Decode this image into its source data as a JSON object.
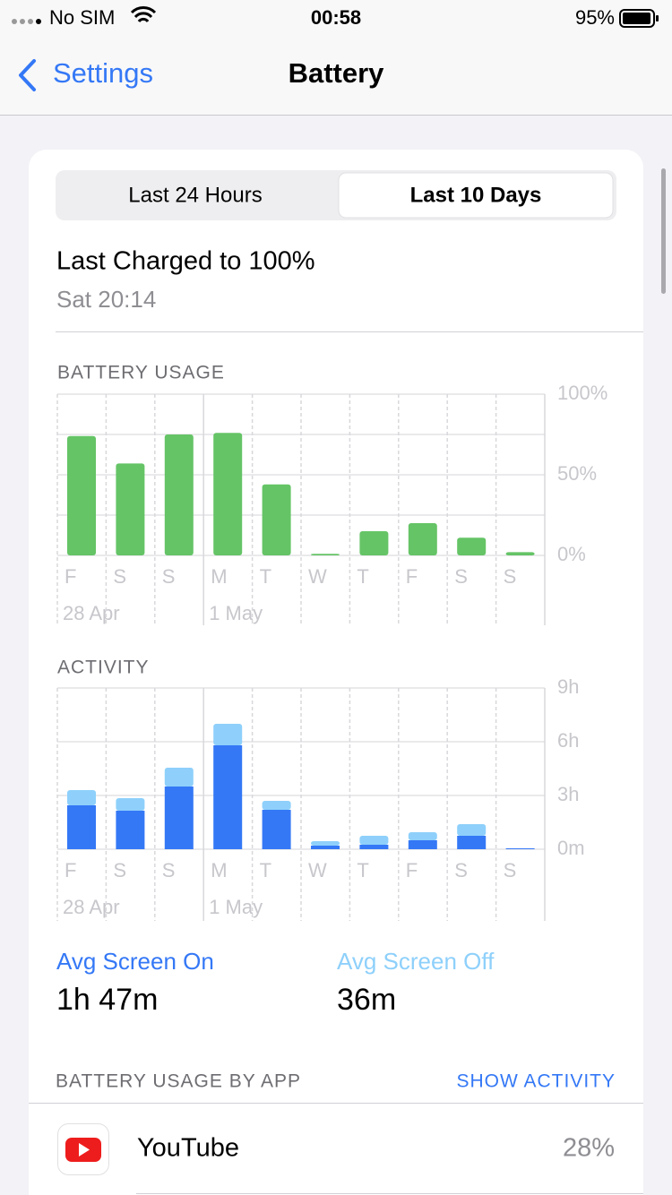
{
  "status_bar": {
    "carrier": "No SIM",
    "time": "00:58",
    "battery": "95%"
  },
  "nav": {
    "back": "Settings",
    "title": "Battery"
  },
  "segmented": {
    "options": [
      "Last 24 Hours",
      "Last 10 Days"
    ],
    "selected": 1
  },
  "last_charged": {
    "title": "Last Charged to 100%",
    "time": "Sat 20:14"
  },
  "chart_data": [
    {
      "type": "bar",
      "title": "BATTERY USAGE",
      "categories": [
        "F",
        "S",
        "S",
        "M",
        "T",
        "W",
        "T",
        "F",
        "S",
        "S"
      ],
      "date_labels": [
        "28 Apr",
        null,
        null,
        "1 May",
        null,
        null,
        null,
        null,
        null,
        null
      ],
      "values": [
        74,
        57,
        75,
        76,
        44,
        1,
        15,
        20,
        11,
        2
      ],
      "color": "#65c466",
      "ylim": [
        0,
        100
      ],
      "yticks": [
        {
          "value": 0,
          "label": "0%"
        },
        {
          "value": 50,
          "label": "50%"
        },
        {
          "value": 100,
          "label": "100%"
        }
      ],
      "minor_grid": [
        25,
        75
      ]
    },
    {
      "type": "stacked_bar",
      "title": "ACTIVITY",
      "categories": [
        "F",
        "S",
        "S",
        "M",
        "T",
        "W",
        "T",
        "F",
        "S",
        "S"
      ],
      "date_labels": [
        "28 Apr",
        null,
        null,
        "1 May",
        null,
        null,
        null,
        null,
        null,
        null
      ],
      "series": [
        {
          "name": "Avg Screen On",
          "average": "1h 47m",
          "color": "#3478f6",
          "values": [
            2.45,
            2.15,
            3.5,
            5.8,
            2.2,
            0.2,
            0.25,
            0.5,
            0.75,
            0.05
          ]
        },
        {
          "name": "Avg Screen Off",
          "average": "36m",
          "color": "#8ed0fb",
          "values": [
            0.85,
            0.7,
            1.05,
            1.2,
            0.5,
            0.25,
            0.5,
            0.45,
            0.65,
            0
          ]
        }
      ],
      "ylim": [
        0,
        9
      ],
      "yticks": [
        {
          "value": 0,
          "label": "0m"
        },
        {
          "value": 3,
          "label": "3h"
        },
        {
          "value": 6,
          "label": "6h"
        },
        {
          "value": 9,
          "label": "9h"
        }
      ]
    }
  ],
  "app_section": {
    "title": "BATTERY USAGE BY APP",
    "action": "SHOW ACTIVITY",
    "apps": [
      {
        "name": "YouTube",
        "percent": "28%"
      }
    ]
  }
}
